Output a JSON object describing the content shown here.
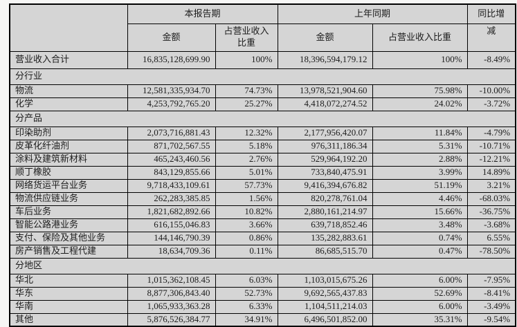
{
  "colors": {
    "page_bg": "#f6f6f5",
    "cell_gray": "#d5d5d5",
    "cell_white": "#ffffff",
    "border_color": "#000000",
    "text_color": "#1c1c1c"
  },
  "table": {
    "header": {
      "period_current": "本报告期",
      "period_prior": "上年同期",
      "yoy_label_line1": "同比增",
      "yoy_label_line2": "减",
      "amount_label": "金额",
      "ratio_label": "占营业收入比重"
    },
    "rows": [
      {
        "type": "total",
        "label": "营业收入合计",
        "cur_amount": "16,835,128,699.90",
        "cur_ratio": "100%",
        "prior_amount": "18,396,594,179.12",
        "prior_ratio": "100%",
        "yoy": "-8.49%"
      },
      {
        "type": "section",
        "label": "分行业"
      },
      {
        "type": "data",
        "label": "物流",
        "cur_amount": "12,581,335,934.70",
        "cur_ratio": "74.73%",
        "prior_amount": "13,978,521,904.60",
        "prior_ratio": "75.98%",
        "yoy": "-10.00%"
      },
      {
        "type": "data",
        "label": "化学",
        "cur_amount": "4,253,792,765.20",
        "cur_ratio": "25.27%",
        "prior_amount": "4,418,072,274.52",
        "prior_ratio": "24.02%",
        "yoy": "-3.72%"
      },
      {
        "type": "section",
        "label": "分产品"
      },
      {
        "type": "data",
        "label": "印染助剂",
        "cur_amount": "2,073,716,881.43",
        "cur_ratio": "12.32%",
        "prior_amount": "2,177,956,420.07",
        "prior_ratio": "11.84%",
        "yoy": "-4.79%"
      },
      {
        "type": "data",
        "label": "皮革化纤油剂",
        "cur_amount": "871,702,567.55",
        "cur_ratio": "5.18%",
        "prior_amount": "976,311,186.34",
        "prior_ratio": "5.31%",
        "yoy": "-10.71%"
      },
      {
        "type": "data",
        "label": "涂料及建筑新材料",
        "cur_amount": "465,243,460.56",
        "cur_ratio": "2.76%",
        "prior_amount": "529,964,192.20",
        "prior_ratio": "2.88%",
        "yoy": "-12.21%"
      },
      {
        "type": "data",
        "label": "顺丁橡胶",
        "cur_amount": "843,129,855.66",
        "cur_ratio": "5.01%",
        "prior_amount": "733,840,475.91",
        "prior_ratio": "3.99%",
        "yoy": "14.89%"
      },
      {
        "type": "data",
        "label": "网络货运平台业务",
        "cur_amount": "9,718,433,109.61",
        "cur_ratio": "57.73%",
        "prior_amount": "9,416,394,676.82",
        "prior_ratio": "51.19%",
        "yoy": "3.21%"
      },
      {
        "type": "data",
        "label": "物流供应链业务",
        "cur_amount": "262,283,385.85",
        "cur_ratio": "1.56%",
        "prior_amount": "820,278,761.04",
        "prior_ratio": "4.46%",
        "yoy": "-68.03%"
      },
      {
        "type": "data",
        "label": "车后业务",
        "cur_amount": "1,821,682,892.66",
        "cur_ratio": "10.82%",
        "prior_amount": "2,880,161,214.97",
        "prior_ratio": "15.66%",
        "yoy": "-36.75%"
      },
      {
        "type": "data",
        "label": "智能公路港业务",
        "cur_amount": "616,155,046.83",
        "cur_ratio": "3.66%",
        "prior_amount": "639,718,852.46",
        "prior_ratio": "3.48%",
        "yoy": "-3.68%"
      },
      {
        "type": "data",
        "label": "支付、保险及其他业务",
        "cur_amount": "144,146,790.39",
        "cur_ratio": "0.86%",
        "prior_amount": "135,282,883.61",
        "prior_ratio": "0.74%",
        "yoy": "6.55%"
      },
      {
        "type": "data",
        "label": "房产销售及工程代建",
        "cur_amount": "18,634,709.36",
        "cur_ratio": "0.11%",
        "prior_amount": "86,685,515.70",
        "prior_ratio": "0.47%",
        "yoy": "-78.50%"
      },
      {
        "type": "section",
        "label": "分地区"
      },
      {
        "type": "data",
        "label": "华北",
        "cur_amount": "1,015,362,108.45",
        "cur_ratio": "6.03%",
        "prior_amount": "1,103,015,675.26",
        "prior_ratio": "6.00%",
        "yoy": "-7.95%"
      },
      {
        "type": "data",
        "label": "华东",
        "cur_amount": "8,877,306,843.40",
        "cur_ratio": "52.73%",
        "prior_amount": "9,692,565,437.83",
        "prior_ratio": "52.69%",
        "yoy": "-8.41%"
      },
      {
        "type": "data",
        "label": "华南",
        "cur_amount": "1,065,933,363.28",
        "cur_ratio": "6.33%",
        "prior_amount": "1,104,511,214.03",
        "prior_ratio": "6.00%",
        "yoy": "-3.49%"
      },
      {
        "type": "data",
        "label": "其他",
        "cur_amount": "5,876,526,384.77",
        "cur_ratio": "34.91%",
        "prior_amount": "6,496,501,852.00",
        "prior_ratio": "35.31%",
        "yoy": "-9.54%"
      }
    ]
  }
}
